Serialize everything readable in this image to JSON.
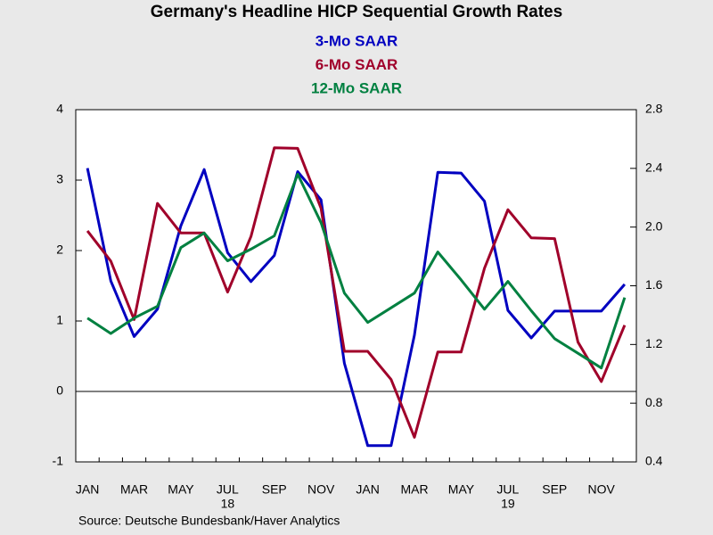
{
  "chart_data": {
    "type": "line",
    "title": "Germany's Headline HICP Sequential Growth Rates",
    "source": "Source:  Deutsche Bundesbank/Haver Analytics",
    "categories": [
      "JAN",
      null,
      "MAR",
      null,
      "MAY",
      null,
      "JUL",
      null,
      "SEP",
      null,
      "NOV",
      null,
      "JAN",
      null,
      "MAR",
      null,
      "MAY",
      null,
      "JUL",
      null,
      "SEP",
      null,
      "NOV",
      null
    ],
    "years": [
      "18",
      "19"
    ],
    "series": [
      {
        "name": "3-Mo SAAR",
        "color": "#0000c0",
        "values": [
          3.17,
          1.57,
          0.78,
          1.17,
          2.35,
          3.15,
          1.97,
          1.56,
          1.93,
          3.12,
          2.72,
          0.4,
          -0.77,
          -0.77,
          0.8,
          3.11,
          3.1,
          2.7,
          1.15,
          0.76,
          1.14,
          1.14,
          1.14,
          1.52
        ]
      },
      {
        "name": "6-Mo SAAR",
        "color": "#a0002a",
        "values": [
          2.28,
          1.85,
          1.02,
          2.67,
          2.25,
          2.25,
          1.41,
          2.2,
          3.46,
          3.45,
          2.6,
          0.57,
          0.57,
          0.17,
          -0.65,
          0.56,
          0.56,
          1.75,
          2.58,
          2.18,
          2.17,
          0.7,
          0.14,
          0.94
        ]
      },
      {
        "name": "12-Mo SAAR",
        "color": "#008040",
        "axis": "y2",
        "values": [
          1.38,
          1.275,
          1.38,
          1.46,
          1.86,
          1.96,
          1.77,
          1.85,
          1.94,
          2.36,
          2.03,
          1.55,
          1.35,
          1.45,
          1.55,
          1.83,
          1.64,
          1.44,
          1.63,
          1.43,
          1.24,
          1.14,
          1.04,
          1.52
        ]
      }
    ],
    "ylim": [
      -1,
      4
    ],
    "yticks": [
      -1,
      0,
      1,
      2,
      3,
      4
    ],
    "y2lim": [
      0.4,
      2.8
    ],
    "y2ticks": [
      0.4,
      0.8,
      1.2,
      1.6,
      {
        "value": 2,
        "label": "2.0"
      },
      2.4,
      2.8
    ],
    "zero_line": true
  }
}
